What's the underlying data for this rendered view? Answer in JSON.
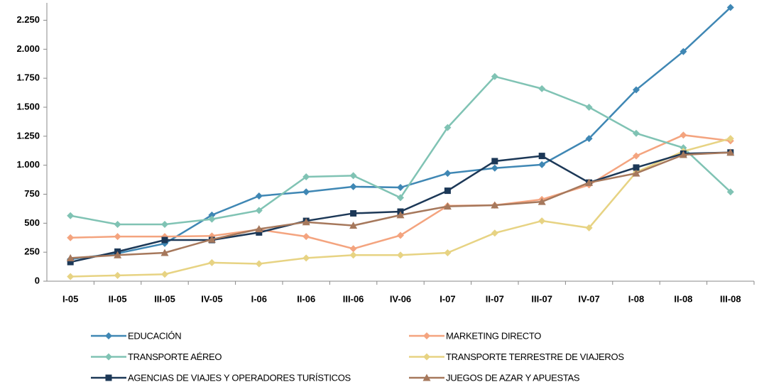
{
  "chart_data": {
    "type": "line",
    "categories": [
      "I-05",
      "II-05",
      "III-05",
      "IV-05",
      "I-06",
      "II-06",
      "III-06",
      "IV-06",
      "I-07",
      "II-07",
      "III-07",
      "IV-07",
      "I-08",
      "II-08",
      "III-08"
    ],
    "series": [
      {
        "name": "EDUCACIÓN",
        "color": "#3f87b4",
        "marker": "diamond",
        "values": [
          190,
          240,
          325,
          570,
          735,
          770,
          815,
          808,
          930,
          975,
          1005,
          1230,
          1650,
          1980,
          2360
        ]
      },
      {
        "name": "MARKETING DIRECTO",
        "color": "#f4a47f",
        "marker": "diamond",
        "values": [
          375,
          385,
          385,
          390,
          445,
          385,
          280,
          395,
          650,
          655,
          705,
          830,
          1080,
          1260,
          1210
        ]
      },
      {
        "name": "TRANSPORTE AÉREO",
        "color": "#80c3b4",
        "marker": "diamond",
        "values": [
          565,
          490,
          490,
          535,
          610,
          900,
          910,
          720,
          1325,
          1765,
          1660,
          1500,
          1275,
          1150,
          770
        ]
      },
      {
        "name": "TRANSPORTE TERRESTRE DE VIAJEROS",
        "color": "#e7d383",
        "marker": "diamond",
        "values": [
          40,
          50,
          60,
          160,
          150,
          200,
          225,
          225,
          245,
          415,
          520,
          460,
          940,
          1120,
          1230
        ]
      },
      {
        "name": "AGENCIAS DE VIAJES Y OPERADORES TURÍSTICOS",
        "color": "#1c3857",
        "marker": "square",
        "values": [
          165,
          255,
          355,
          355,
          420,
          520,
          585,
          600,
          780,
          1035,
          1080,
          850,
          980,
          1100,
          1110
        ]
      },
      {
        "name": "JUEGOS DE AZAR Y APUESTAS",
        "color": "#a6785c",
        "marker": "triangle",
        "values": [
          200,
          225,
          245,
          360,
          450,
          510,
          480,
          570,
          645,
          655,
          685,
          850,
          930,
          1090,
          1110
        ]
      }
    ],
    "ylim": [
      0,
      2400
    ],
    "yticks": [
      0,
      250,
      500,
      750,
      {
        "value": 1000,
        "label": "1.000"
      },
      {
        "value": 1250,
        "label": "1.250"
      },
      {
        "value": 1500,
        "label": "1.500"
      },
      {
        "value": 1750,
        "label": "1.750"
      },
      {
        "value": 2000,
        "label": "2.000"
      },
      {
        "value": 2250,
        "label": "2.250"
      }
    ],
    "grid": false,
    "legend": "bottom"
  }
}
